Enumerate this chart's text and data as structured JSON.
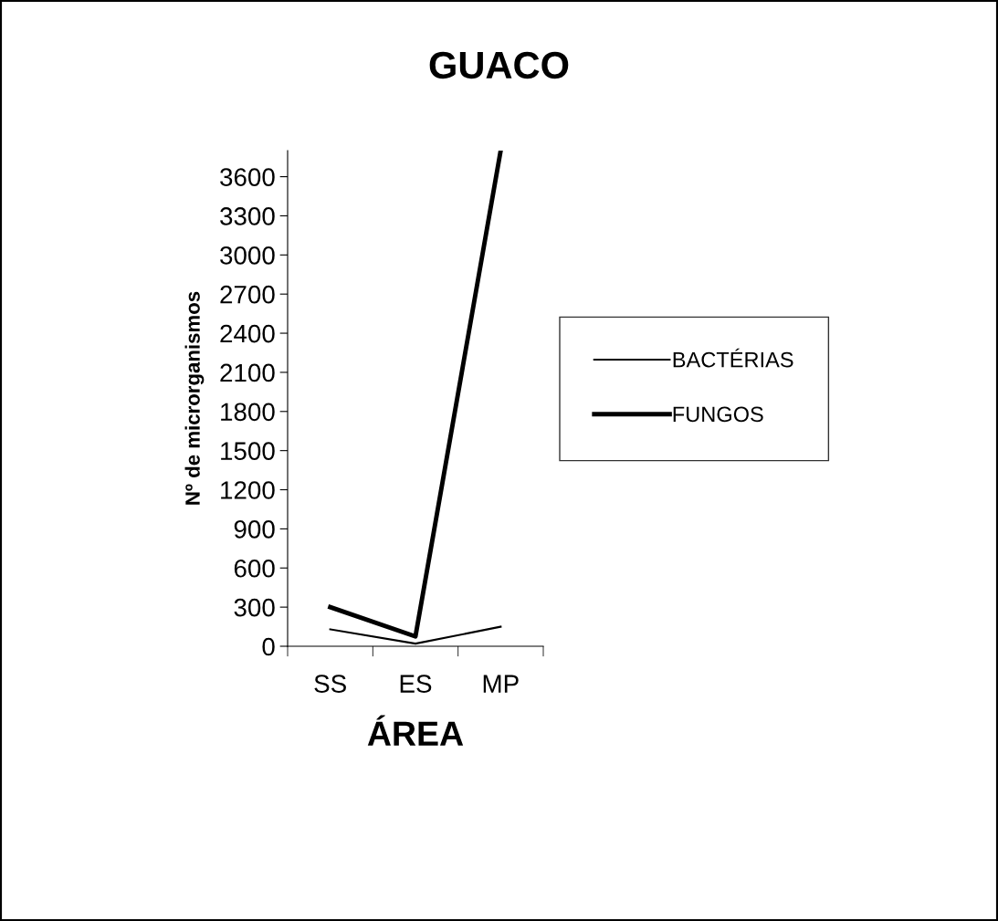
{
  "chart_data": {
    "type": "line",
    "title": "GUACO",
    "xlabel": "ÁREA",
    "ylabel": "Nº de microrganismos",
    "categories": [
      "SS",
      "ES",
      "MP"
    ],
    "series": [
      {
        "name": "BACTÉRIAS",
        "color": "#000000",
        "values": [
          130,
          20,
          150
        ]
      },
      {
        "name": "FUNGOS",
        "color": "#000000",
        "values": [
          300,
          75,
          3800
        ]
      }
    ],
    "ylim": [
      0,
      3800
    ],
    "yticks": [
      0,
      300,
      600,
      900,
      1200,
      1500,
      1800,
      2100,
      2400,
      2700,
      3000,
      3300,
      3600
    ],
    "grid": false,
    "legend": "right",
    "marker": "none",
    "line_style": "solid"
  }
}
